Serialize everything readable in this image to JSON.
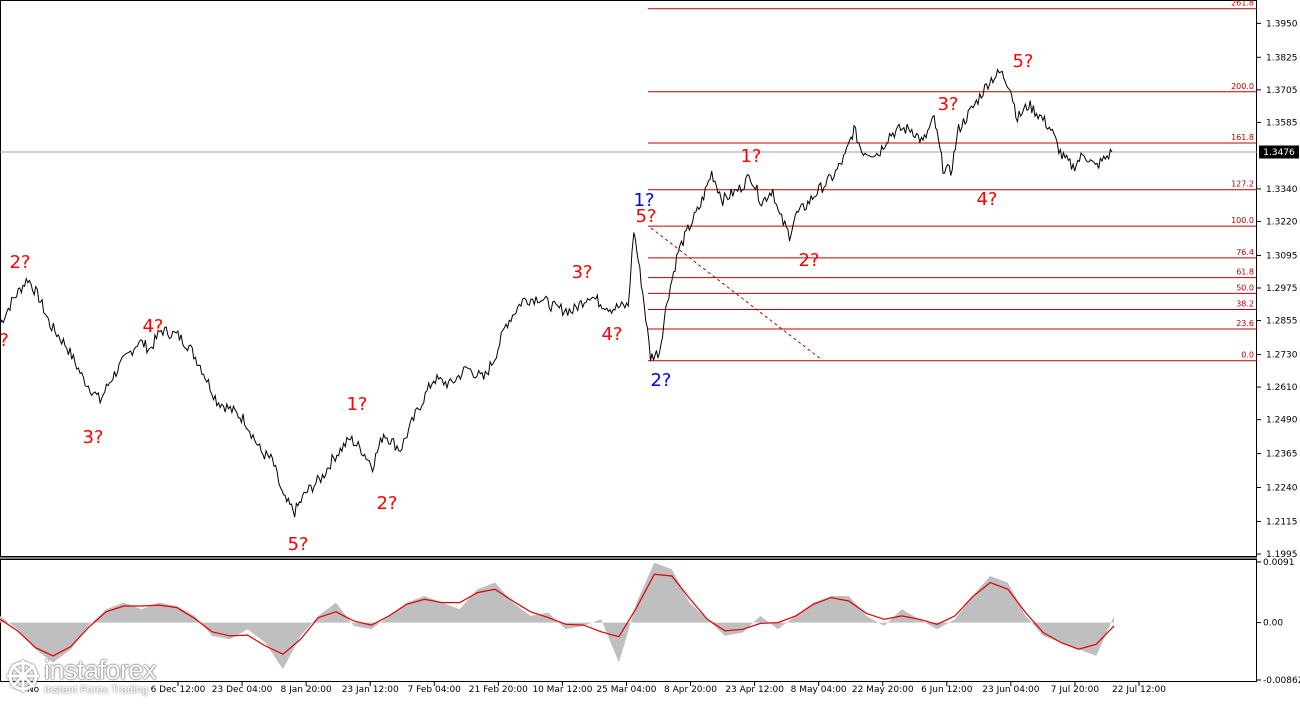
{
  "chart_data": [
    {
      "type": "line",
      "instrument_note": "price",
      "y_ticks": [
        "1.3950",
        "1.3825",
        "1.3705",
        "1.3585",
        "1.3340",
        "1.3220",
        "1.3095",
        "1.2975",
        "1.2855",
        "1.2730",
        "1.2610",
        "1.2490",
        "1.2365",
        "1.2240",
        "1.2115",
        "1.1995"
      ],
      "ylim": [
        1.1995,
        1.4025
      ],
      "current_price_label": "1.3476",
      "current_price": 1.3476,
      "x_tick_labels": [
        "6 Dec 12:00",
        "23 Dec 04:00",
        "8 Jan 20:00",
        "23 Jan 12:00",
        "7 Feb 04:00",
        "21 Feb 20:00",
        "10 Mar 12:00",
        "25 Mar 04:00",
        "8 Apr 20:00",
        "23 Apr 12:00",
        "8 May 04:00",
        "22 May 20:00",
        "6 Jun 12:00",
        "23 Jun 04:00",
        "7 Jul 20:00",
        "22 Jul 12:00"
      ],
      "x_tick_partial_left": "No",
      "price_path": [
        [
          0,
          1.2842
        ],
        [
          0.012,
          1.2935
        ],
        [
          0.025,
          1.301
        ],
        [
          0.035,
          1.294
        ],
        [
          0.045,
          1.284
        ],
        [
          0.06,
          1.276
        ],
        [
          0.075,
          1.264
        ],
        [
          0.09,
          1.256
        ],
        [
          0.1,
          1.264
        ],
        [
          0.11,
          1.27
        ],
        [
          0.125,
          1.278
        ],
        [
          0.135,
          1.275
        ],
        [
          0.145,
          1.282
        ],
        [
          0.16,
          1.28
        ],
        [
          0.17,
          1.276
        ],
        [
          0.18,
          1.269
        ],
        [
          0.195,
          1.256
        ],
        [
          0.21,
          1.252
        ],
        [
          0.22,
          1.249
        ],
        [
          0.235,
          1.237
        ],
        [
          0.245,
          1.234
        ],
        [
          0.255,
          1.22
        ],
        [
          0.265,
          1.215
        ],
        [
          0.275,
          1.222
        ],
        [
          0.29,
          1.228
        ],
        [
          0.3,
          1.235
        ],
        [
          0.315,
          1.242
        ],
        [
          0.325,
          1.238
        ],
        [
          0.335,
          1.232
        ],
        [
          0.345,
          1.244
        ],
        [
          0.36,
          1.238
        ],
        [
          0.375,
          1.252
        ],
        [
          0.39,
          1.264
        ],
        [
          0.405,
          1.262
        ],
        [
          0.42,
          1.268
        ],
        [
          0.435,
          1.264
        ],
        [
          0.445,
          1.272
        ],
        [
          0.455,
          1.284
        ],
        [
          0.47,
          1.293
        ],
        [
          0.485,
          1.294
        ],
        [
          0.5,
          1.29
        ],
        [
          0.515,
          1.289
        ],
        [
          0.53,
          1.295
        ],
        [
          0.54,
          1.292
        ],
        [
          0.55,
          1.29
        ],
        [
          0.565,
          1.291
        ],
        [
          0.57,
          1.319
        ],
        [
          0.578,
          1.296
        ],
        [
          0.585,
          1.272
        ],
        [
          0.593,
          1.274
        ],
        [
          0.6,
          1.293
        ],
        [
          0.61,
          1.311
        ],
        [
          0.62,
          1.32
        ],
        [
          0.63,
          1.328
        ],
        [
          0.64,
          1.34
        ],
        [
          0.65,
          1.33
        ],
        [
          0.665,
          1.334
        ],
        [
          0.675,
          1.339
        ],
        [
          0.685,
          1.329
        ],
        [
          0.695,
          1.334
        ],
        [
          0.7,
          1.325
        ],
        [
          0.71,
          1.317
        ],
        [
          0.715,
          1.324
        ],
        [
          0.725,
          1.328
        ],
        [
          0.735,
          1.333
        ],
        [
          0.75,
          1.339
        ],
        [
          0.76,
          1.346
        ],
        [
          0.768,
          1.356
        ],
        [
          0.775,
          1.348
        ],
        [
          0.79,
          1.347
        ],
        [
          0.8,
          1.354
        ],
        [
          0.81,
          1.356
        ],
        [
          0.82,
          1.356
        ],
        [
          0.83,
          1.351
        ],
        [
          0.84,
          1.36
        ],
        [
          0.848,
          1.342
        ],
        [
          0.855,
          1.34
        ],
        [
          0.862,
          1.356
        ],
        [
          0.875,
          1.364
        ],
        [
          0.89,
          1.374
        ],
        [
          0.9,
          1.377
        ],
        [
          0.908,
          1.372
        ],
        [
          0.915,
          1.36
        ],
        [
          0.925,
          1.365
        ],
        [
          0.935,
          1.361
        ],
        [
          0.945,
          1.356
        ],
        [
          0.955,
          1.346
        ],
        [
          0.965,
          1.342
        ],
        [
          0.975,
          1.347
        ],
        [
          0.985,
          1.342
        ],
        [
          1.0,
          1.3476
        ]
      ],
      "fibonacci_levels": [
        {
          "label": "0.0",
          "price": 1.2707
        },
        {
          "label": "23.6",
          "price": 1.2824
        },
        {
          "label": "38.2",
          "price": 1.2896
        },
        {
          "label": "50.0",
          "price": 1.2955
        },
        {
          "label": "61.8",
          "price": 1.3013
        },
        {
          "label": "76.4",
          "price": 1.3086
        },
        {
          "label": "100.0",
          "price": 1.3203
        },
        {
          "label": "127.2",
          "price": 1.3337
        },
        {
          "label": "161.8",
          "price": 1.3509
        },
        {
          "label": "200.0",
          "price": 1.3698
        },
        {
          "label": "261.8",
          "price": 1.4004
        }
      ],
      "wave_labels": [
        {
          "text": "?",
          "color": "#ff0000"
        },
        {
          "text": "2?",
          "color": "#ff0000"
        },
        {
          "text": "3?",
          "color": "#ff0000"
        },
        {
          "text": "4?",
          "color": "#ff0000"
        },
        {
          "text": "5?",
          "color": "#ff0000"
        },
        {
          "text": "1?",
          "color": "#ff0000"
        },
        {
          "text": "2?",
          "color": "#ff0000"
        },
        {
          "text": "3?",
          "color": "#ff0000"
        },
        {
          "text": "4?",
          "color": "#ff0000"
        },
        {
          "text": "1?",
          "color": "#0000ff"
        },
        {
          "text": "5?",
          "color": "#ff0000"
        },
        {
          "text": "2?",
          "color": "#0000ff"
        },
        {
          "text": "1?",
          "color": "#ff0000"
        },
        {
          "text": "2?",
          "color": "#ff0000"
        },
        {
          "text": "3?",
          "color": "#ff0000"
        },
        {
          "text": "4?",
          "color": "#ff0000"
        },
        {
          "text": "5?",
          "color": "#ff0000"
        }
      ]
    },
    {
      "type": "area",
      "instrument_note": "oscillator",
      "y_ticks": [
        "0.0091",
        "0.00",
        "-0.00862"
      ],
      "ylim": [
        -0.00862,
        0.0091
      ],
      "oscillator_values": [
        0.001,
        -0.001,
        -0.004,
        -0.006,
        -0.004,
        -0.0005,
        0.002,
        0.003,
        0.002,
        0.003,
        0.0025,
        0.001,
        -0.002,
        -0.0025,
        -0.001,
        -0.003,
        -0.007,
        -0.002,
        0.001,
        0.003,
        -0.0005,
        -0.001,
        0.001,
        0.003,
        0.004,
        0.003,
        0.002,
        0.005,
        0.006,
        0.003,
        0.001,
        0.0015,
        -0.001,
        -0.0005,
        0.0005,
        -0.006,
        0.003,
        0.009,
        0.008,
        0.003,
        0.0005,
        -0.002,
        -0.0015,
        0.001,
        -0.001,
        0.001,
        0.003,
        0.004,
        0.004,
        0.001,
        -0.0005,
        0.002,
        0.0005,
        -0.001,
        0.0005,
        0.004,
        0.007,
        0.006,
        0.001,
        -0.002,
        -0.003,
        -0.004,
        -0.005,
        0.001
      ]
    }
  ],
  "colors": {
    "fib_line": "#c00000",
    "price_line": "#000000",
    "wave_red": "#ff0000",
    "wave_blue": "#0000ff",
    "osc_fill": "#bfbfbf",
    "osc_signal": "#e00000",
    "current_price_bg": "#000000"
  },
  "brand": {
    "name": "instaforex",
    "tagline": "Instant Forex Trading",
    "icon": "instaforex-logo-icon"
  }
}
